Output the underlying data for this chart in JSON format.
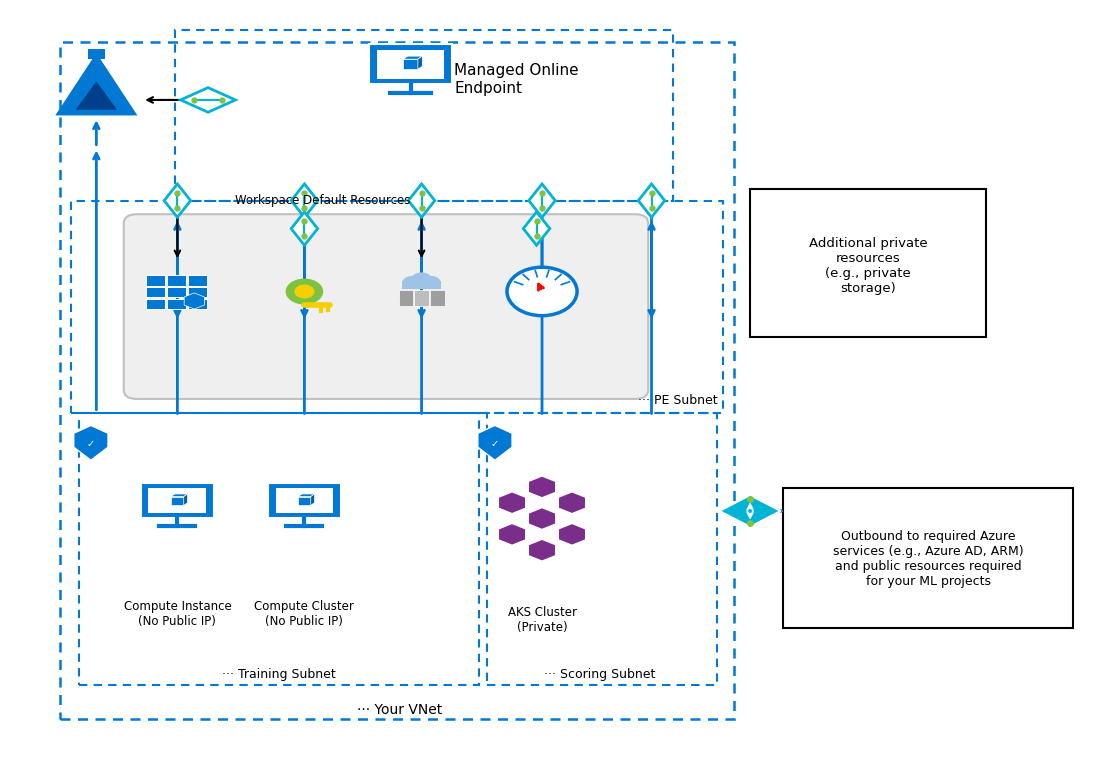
{
  "bg_color": "#ffffff",
  "azure_blue": "#0078d4",
  "light_blue": "#00b4d8",
  "green": "#7dc241",
  "purple": "#7b2d8b",
  "gray": "#888888",
  "labels": {
    "managed_online_endpoint": "Managed Online\nEndpoint",
    "workspace_default": "Workspace Default Resources",
    "pe_subnet": "··· PE Subnet",
    "training_subnet": "··· Training Subnet",
    "scoring_subnet": "··· Scoring Subnet",
    "your_vnet": "··· Your VNet",
    "compute_instance": "Compute Instance\n(No Public IP)",
    "compute_cluster": "Compute Cluster\n(No Public IP)",
    "aks_cluster": "AKS Cluster\n(Private)",
    "additional_private": "Additional private\nresources\n(e.g., private\nstorage)",
    "outbound": "Outbound to required Azure\nservices (e.g., Azure AD, ARM)\nand public resources required\nfor your ML projects"
  }
}
